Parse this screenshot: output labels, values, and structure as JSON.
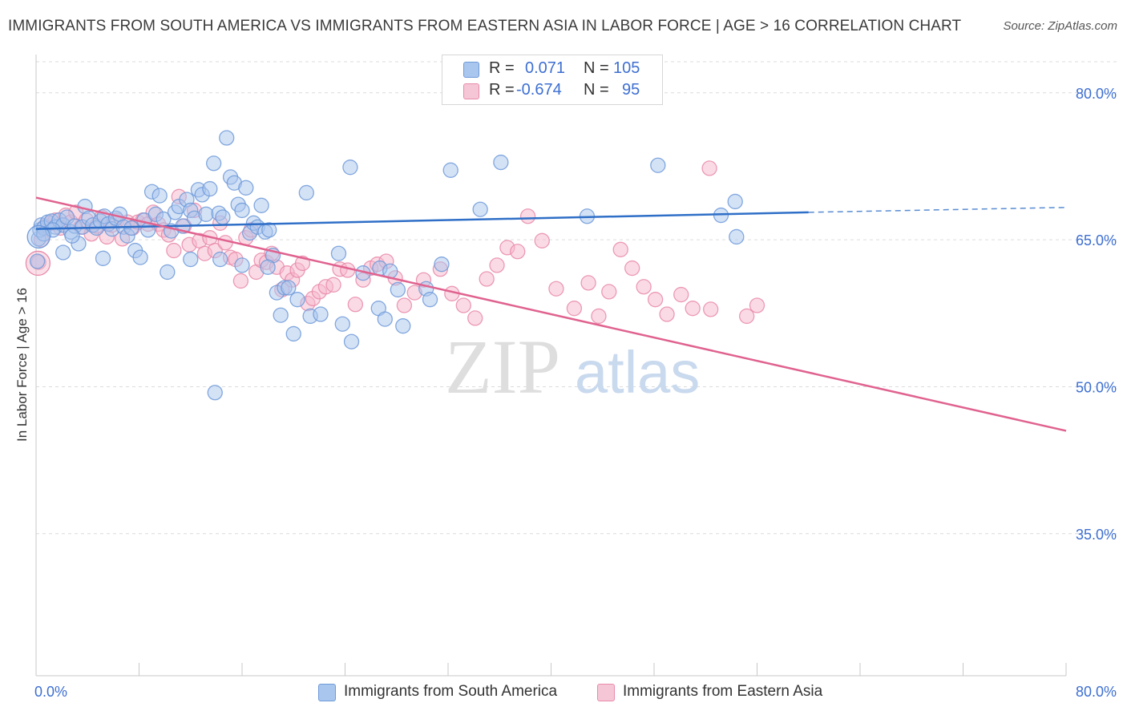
{
  "header": {
    "title": "IMMIGRANTS FROM SOUTH AMERICA VS IMMIGRANTS FROM EASTERN ASIA IN LABOR FORCE | AGE > 16 CORRELATION CHART",
    "source": "Source: ZipAtlas.com"
  },
  "legend": {
    "r_label": "R =",
    "n_label": "N =",
    "south_america": {
      "r": "0.071",
      "n": "105"
    },
    "eastern_asia": {
      "r": "-0.674",
      "n": "95"
    }
  },
  "colors": {
    "blue_fill": "#a9c6ee",
    "blue_stroke": "#6f9ad9",
    "blue_line": "#2f6fc7",
    "pink_fill": "#f5b8cc",
    "pink_stroke": "#e98aa9",
    "pink_line": "#e0628f",
    "axis_text": "#3d6fd1",
    "grid": "#dcdcdc"
  },
  "watermark": {
    "zip": "ZIP",
    "atlas": "atlas"
  },
  "chart_data": {
    "type": "scatter",
    "title": "IMMIGRANTS FROM SOUTH AMERICA VS IMMIGRANTS FROM EASTERN ASIA IN LABOR FORCE | AGE > 16 CORRELATION CHART",
    "xlabel": "",
    "ylabel": "In Labor Force | Age > 16",
    "xlim": [
      0,
      80
    ],
    "ylim": [
      20.5,
      83.5
    ],
    "x_tick_labels": [
      "0.0%",
      "80.0%"
    ],
    "y_ticks": [
      80,
      65,
      50,
      35
    ],
    "y_tick_labels": [
      "80.0%",
      "65.0%",
      "50.0%",
      "35.0%"
    ],
    "grid": true,
    "legend_position": "top-center",
    "series": [
      {
        "name": "Immigrants from South America",
        "color": "blue",
        "R": 0.071,
        "N": 105,
        "trend": {
          "x": [
            0,
            60
          ],
          "y": [
            66.1,
            67.8
          ],
          "dashed_to": [
            80,
            68.3
          ]
        },
        "points": [
          [
            0.2,
            65.1
          ],
          [
            0.3,
            66.0
          ],
          [
            0.4,
            66.5
          ],
          [
            0.6,
            66.2
          ],
          [
            0.9,
            66.8
          ],
          [
            1.2,
            66.9
          ],
          [
            1.5,
            66.3
          ],
          [
            1.8,
            67.0
          ],
          [
            2.1,
            66.5
          ],
          [
            2.4,
            67.3
          ],
          [
            2.7,
            65.8
          ],
          [
            3.0,
            66.4
          ],
          [
            3.3,
            64.6
          ],
          [
            3.6,
            66.3
          ],
          [
            3.8,
            68.4
          ],
          [
            4.1,
            67.2
          ],
          [
            4.4,
            66.5
          ],
          [
            4.7,
            66.2
          ],
          [
            5.0,
            66.9
          ],
          [
            5.3,
            67.4
          ],
          [
            5.6,
            66.6
          ],
          [
            5.9,
            66.1
          ],
          [
            6.2,
            67.2
          ],
          [
            6.5,
            67.6
          ],
          [
            6.8,
            66.3
          ],
          [
            7.1,
            65.4
          ],
          [
            7.4,
            66.2
          ],
          [
            7.7,
            63.9
          ],
          [
            8.1,
            63.2
          ],
          [
            8.4,
            67.0
          ],
          [
            8.7,
            66.0
          ],
          [
            9.0,
            69.9
          ],
          [
            9.3,
            67.6
          ],
          [
            9.6,
            69.5
          ],
          [
            9.9,
            67.1
          ],
          [
            10.2,
            61.7
          ],
          [
            10.5,
            65.9
          ],
          [
            10.8,
            67.8
          ],
          [
            11.1,
            68.4
          ],
          [
            11.4,
            66.4
          ],
          [
            11.7,
            69.1
          ],
          [
            12.0,
            68.0
          ],
          [
            12.3,
            67.2
          ],
          [
            12.6,
            70.1
          ],
          [
            12.9,
            69.6
          ],
          [
            13.2,
            67.6
          ],
          [
            13.5,
            70.2
          ],
          [
            13.8,
            72.8
          ],
          [
            14.2,
            67.7
          ],
          [
            14.5,
            67.3
          ],
          [
            14.8,
            75.4
          ],
          [
            15.1,
            71.4
          ],
          [
            15.4,
            70.8
          ],
          [
            15.7,
            68.6
          ],
          [
            16.0,
            68.0
          ],
          [
            16.3,
            70.3
          ],
          [
            16.6,
            65.7
          ],
          [
            16.9,
            66.7
          ],
          [
            17.2,
            66.3
          ],
          [
            17.5,
            68.5
          ],
          [
            17.8,
            65.8
          ],
          [
            18.1,
            66.0
          ],
          [
            18.4,
            63.4
          ],
          [
            18.7,
            59.6
          ],
          [
            19.0,
            57.3
          ],
          [
            19.3,
            60.1
          ],
          [
            19.6,
            60.1
          ],
          [
            20.0,
            55.4
          ],
          [
            20.3,
            58.9
          ],
          [
            21.0,
            69.8
          ],
          [
            24.4,
            72.4
          ],
          [
            36.1,
            72.9
          ],
          [
            26.7,
            62.1
          ],
          [
            27.5,
            61.8
          ],
          [
            30.3,
            60.0
          ],
          [
            32.2,
            72.1
          ],
          [
            34.5,
            68.1
          ],
          [
            42.8,
            67.4
          ],
          [
            48.3,
            72.6
          ],
          [
            53.2,
            67.5
          ],
          [
            54.3,
            68.9
          ],
          [
            54.4,
            65.3
          ],
          [
            2.1,
            63.7
          ],
          [
            5.2,
            63.1
          ],
          [
            12.0,
            63.0
          ],
          [
            14.3,
            63.0
          ],
          [
            16.0,
            62.4
          ],
          [
            18.0,
            62.2
          ],
          [
            23.5,
            63.6
          ],
          [
            25.4,
            61.6
          ],
          [
            28.1,
            59.9
          ],
          [
            21.3,
            57.2
          ],
          [
            22.1,
            57.4
          ],
          [
            23.8,
            56.4
          ],
          [
            24.5,
            54.6
          ],
          [
            26.6,
            58.0
          ],
          [
            27.1,
            56.9
          ],
          [
            28.5,
            56.2
          ],
          [
            13.9,
            49.4
          ],
          [
            30.6,
            58.9
          ],
          [
            31.5,
            62.5
          ],
          [
            2.8,
            65.4
          ],
          [
            0.1,
            62.8
          ],
          [
            0.6,
            65.6
          ],
          [
            1.3,
            66.0
          ]
        ]
      },
      {
        "name": "Immigrants from Eastern Asia",
        "color": "pink",
        "R": -0.674,
        "N": 95,
        "trend": {
          "x": [
            0,
            80
          ],
          "y": [
            69.3,
            45.5
          ]
        },
        "points": [
          [
            0.2,
            62.7
          ],
          [
            0.4,
            65.0
          ],
          [
            0.7,
            66.4
          ],
          [
            1.1,
            66.7
          ],
          [
            1.5,
            67.0
          ],
          [
            1.9,
            66.2
          ],
          [
            2.3,
            67.5
          ],
          [
            2.7,
            66.8
          ],
          [
            3.1,
            67.8
          ],
          [
            3.5,
            66.3
          ],
          [
            3.9,
            67.0
          ],
          [
            4.3,
            65.6
          ],
          [
            4.7,
            66.4
          ],
          [
            5.1,
            67.3
          ],
          [
            5.5,
            65.3
          ],
          [
            5.9,
            66.5
          ],
          [
            6.3,
            67.0
          ],
          [
            6.7,
            65.1
          ],
          [
            7.1,
            66.8
          ],
          [
            7.5,
            66.2
          ],
          [
            7.9,
            66.8
          ],
          [
            8.3,
            67.0
          ],
          [
            8.7,
            66.6
          ],
          [
            9.1,
            67.8
          ],
          [
            9.5,
            66.6
          ],
          [
            9.9,
            66.0
          ],
          [
            10.3,
            65.5
          ],
          [
            10.7,
            63.9
          ],
          [
            11.1,
            69.4
          ],
          [
            11.5,
            66.4
          ],
          [
            11.9,
            64.5
          ],
          [
            12.3,
            68.0
          ],
          [
            12.7,
            64.9
          ],
          [
            13.1,
            63.6
          ],
          [
            13.5,
            65.2
          ],
          [
            13.9,
            63.9
          ],
          [
            14.3,
            66.7
          ],
          [
            14.7,
            64.7
          ],
          [
            15.1,
            63.2
          ],
          [
            15.5,
            63.0
          ],
          [
            15.9,
            60.8
          ],
          [
            16.3,
            65.2
          ],
          [
            16.7,
            66.0
          ],
          [
            17.1,
            61.7
          ],
          [
            17.5,
            62.9
          ],
          [
            17.9,
            62.7
          ],
          [
            18.3,
            63.6
          ],
          [
            18.7,
            62.2
          ],
          [
            19.1,
            59.9
          ],
          [
            19.5,
            61.6
          ],
          [
            19.9,
            60.9
          ],
          [
            20.3,
            61.9
          ],
          [
            20.7,
            62.6
          ],
          [
            21.1,
            58.5
          ],
          [
            21.5,
            59.0
          ],
          [
            22.0,
            59.7
          ],
          [
            22.5,
            60.2
          ],
          [
            23.1,
            60.4
          ],
          [
            23.6,
            62.0
          ],
          [
            24.2,
            61.9
          ],
          [
            24.8,
            58.4
          ],
          [
            25.4,
            60.9
          ],
          [
            26.0,
            62.1
          ],
          [
            26.5,
            62.5
          ],
          [
            27.2,
            62.8
          ],
          [
            27.9,
            61.1
          ],
          [
            28.6,
            58.3
          ],
          [
            29.4,
            59.6
          ],
          [
            30.1,
            60.9
          ],
          [
            31.4,
            62.0
          ],
          [
            32.3,
            59.5
          ],
          [
            33.2,
            58.3
          ],
          [
            34.1,
            57.0
          ],
          [
            35.0,
            61.0
          ],
          [
            35.8,
            62.4
          ],
          [
            36.6,
            64.2
          ],
          [
            37.4,
            63.8
          ],
          [
            38.2,
            67.4
          ],
          [
            39.3,
            64.9
          ],
          [
            40.4,
            60.0
          ],
          [
            41.8,
            58.0
          ],
          [
            42.9,
            60.6
          ],
          [
            43.7,
            57.2
          ],
          [
            44.5,
            59.7
          ],
          [
            45.4,
            64.0
          ],
          [
            46.3,
            62.1
          ],
          [
            47.2,
            60.2
          ],
          [
            48.1,
            58.9
          ],
          [
            49.0,
            57.4
          ],
          [
            50.1,
            59.4
          ],
          [
            51.0,
            58.0
          ],
          [
            52.4,
            57.9
          ],
          [
            55.2,
            57.2
          ],
          [
            56.0,
            58.3
          ],
          [
            52.3,
            72.3
          ]
        ]
      }
    ]
  },
  "axes": {
    "x_min_label": "0.0%",
    "x_max_label": "80.0%",
    "y_labels": [
      "80.0%",
      "65.0%",
      "50.0%",
      "35.0%"
    ],
    "y_title": "In Labor Force | Age > 16"
  },
  "bottom_legend": {
    "south_america": "Immigrants from South America",
    "eastern_asia": "Immigrants from Eastern Asia"
  }
}
